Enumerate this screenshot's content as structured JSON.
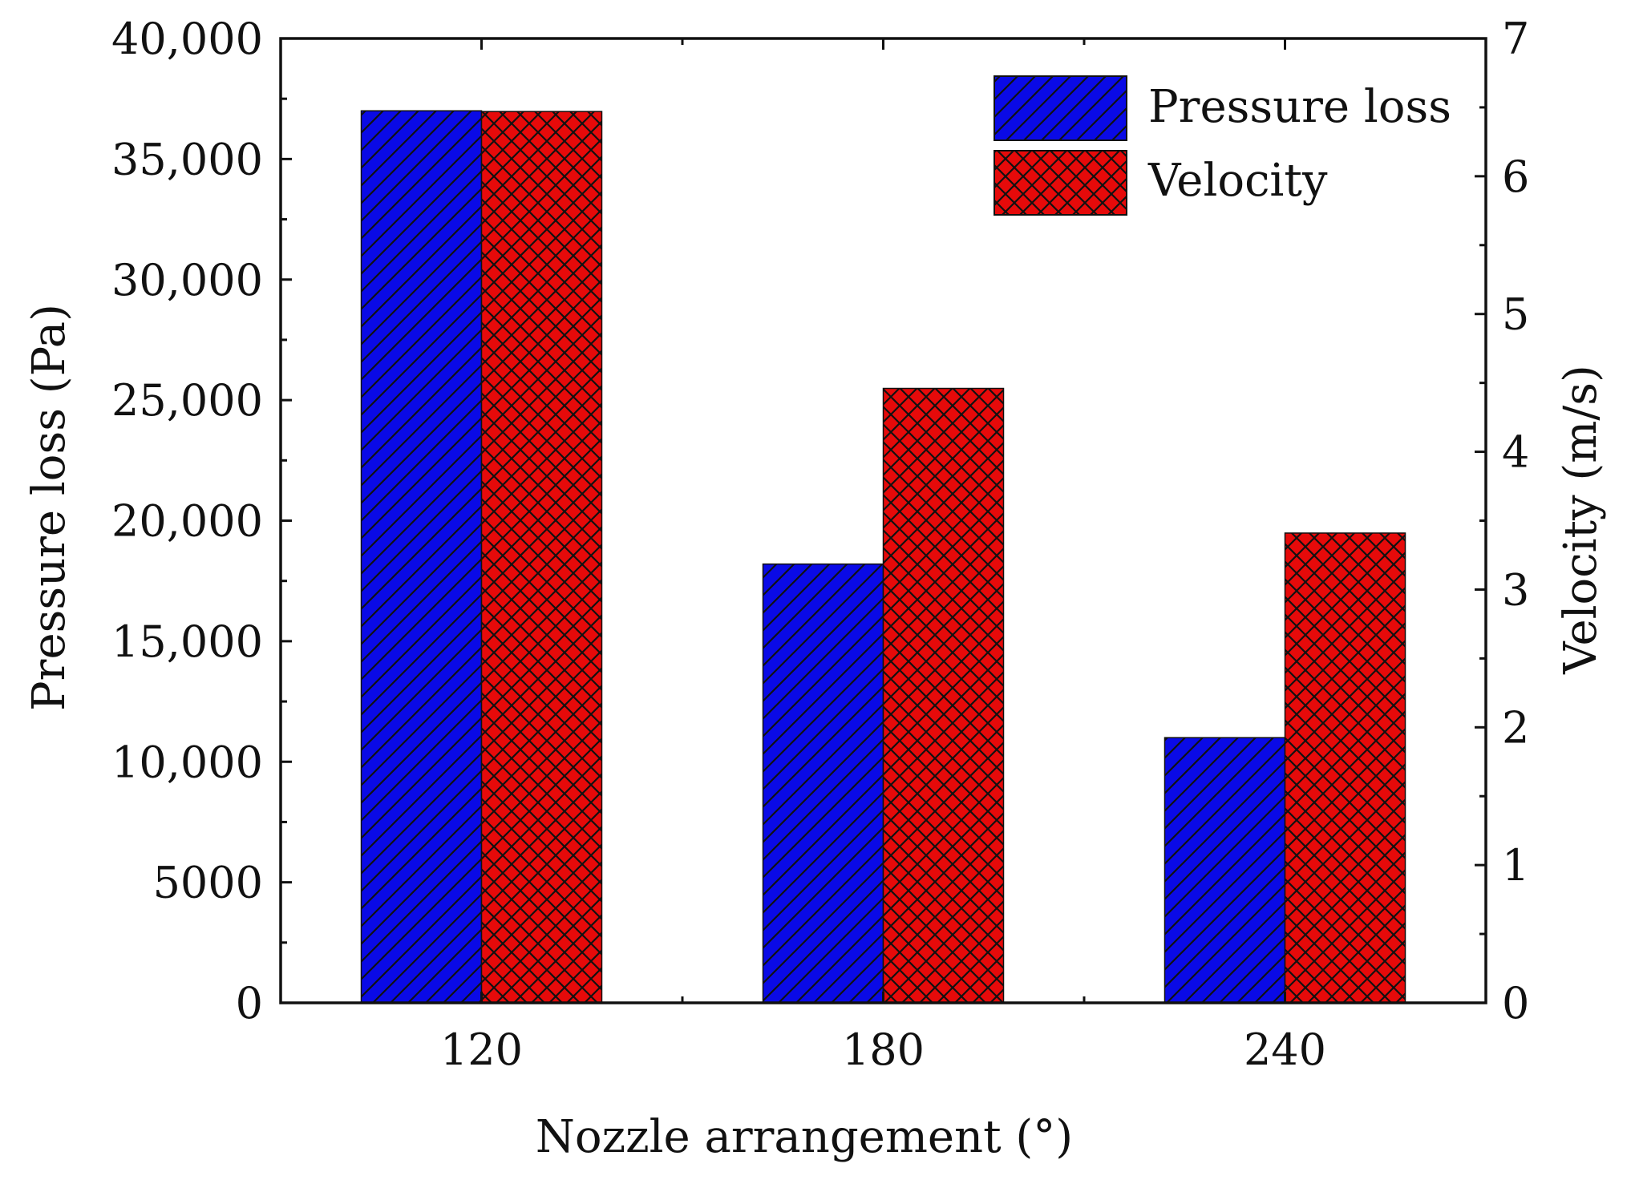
{
  "chart_data": {
    "type": "bar",
    "title": "",
    "xlabel": "Nozzle arrangement (°)",
    "ylabel": "Pressure loss (Pa)",
    "y2label": "Velocity (m/s)",
    "categories": [
      "120",
      "180",
      "240"
    ],
    "ylim": [
      0,
      40000
    ],
    "y2lim": [
      0,
      7
    ],
    "y_ticks": [
      {
        "value": 0,
        "label": "0"
      },
      {
        "value": 5000,
        "label": "5000"
      },
      {
        "value": 10000,
        "label": "10,000"
      },
      {
        "value": 15000,
        "label": "15,000"
      },
      {
        "value": 20000,
        "label": "20,000"
      },
      {
        "value": 25000,
        "label": "25,000"
      },
      {
        "value": 30000,
        "label": "30,000"
      },
      {
        "value": 35000,
        "label": "35,000"
      },
      {
        "value": 40000,
        "label": "40,000"
      }
    ],
    "y2_ticks": [
      {
        "value": 0,
        "label": "0"
      },
      {
        "value": 1,
        "label": "1"
      },
      {
        "value": 2,
        "label": "2"
      },
      {
        "value": 3,
        "label": "3"
      },
      {
        "value": 4,
        "label": "4"
      },
      {
        "value": 5,
        "label": "5"
      },
      {
        "value": 6,
        "label": "6"
      },
      {
        "value": 7,
        "label": "7"
      }
    ],
    "series": [
      {
        "name": "Pressure loss",
        "axis": "left",
        "color": "#0a0ae6",
        "pattern": "diagonal-hatch",
        "values": [
          37000,
          18200,
          11000
        ]
      },
      {
        "name": "Velocity",
        "axis": "right",
        "color": "#e60a0a",
        "pattern": "cross-hatch",
        "values": [
          6.47,
          4.46,
          3.41
        ]
      }
    ],
    "legend_position": "top-right",
    "grid": false
  }
}
